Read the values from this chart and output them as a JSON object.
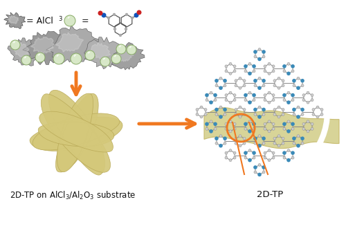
{
  "background_color": "#ffffff",
  "label_left": "2D-TP on AlCl$_3$/Al$_2$O$_3$ substrate",
  "label_right": "2D-TP",
  "legend_alcl3": "= AlCl",
  "legend_aldoxime": " =",
  "arrow_color": "#f07820",
  "text_color": "#111111",
  "flower_color_light": "#e8dfa0",
  "flower_color_mid": "#d4c87a",
  "flower_color_dark": "#b8a855",
  "sheet_color_light": "#eae8c0",
  "sheet_color_mid": "#d8d498",
  "sheet_color_dark": "#c8bc70",
  "crystal_blue": "#3a8ab8",
  "crystal_gray": "#909090",
  "crystal_light": "#c8c8c8",
  "blob_gray": "#aaaaaa",
  "blob_dark": "#777777",
  "blob_edge": "#555555",
  "sphere_color": "#d8e8cc",
  "sphere_edge": "#88aa66",
  "figsize": [
    5.0,
    3.37
  ],
  "dpi": 100
}
